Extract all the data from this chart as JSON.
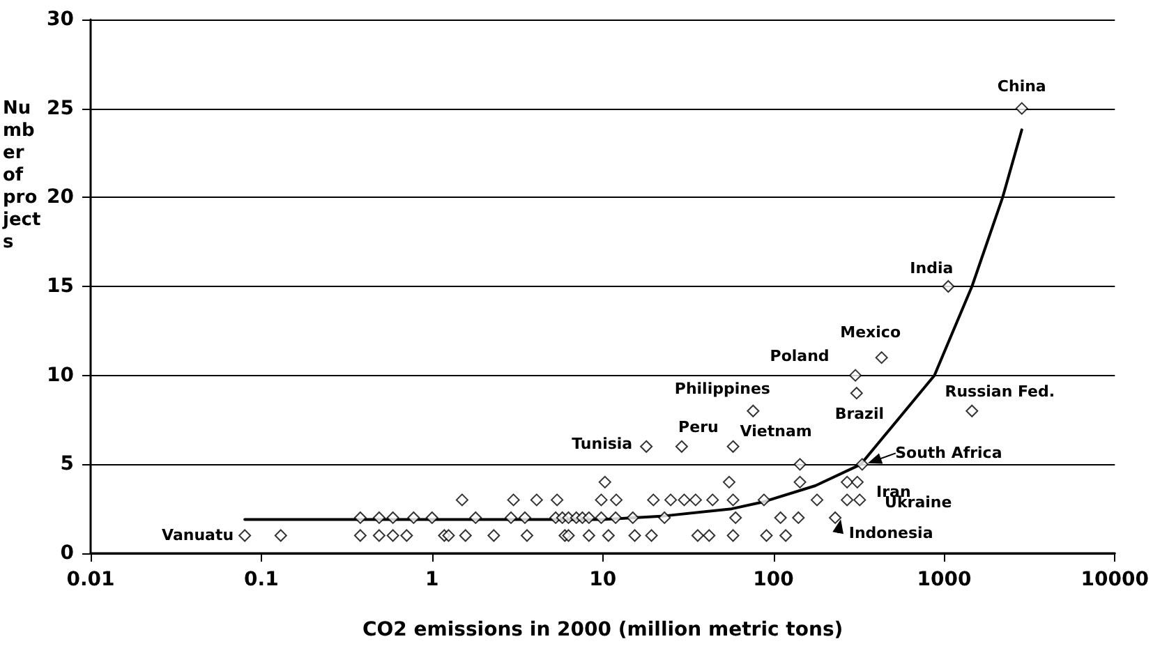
{
  "chart_data": {
    "type": "scatter",
    "xlabel": "CO2 emissions in 2000 (million metric tons)",
    "ylabel": "Number of projects",
    "log": "x",
    "xlim": [
      0.01,
      10000
    ],
    "xticks": [
      0.01,
      0.1,
      1,
      10,
      100,
      1000,
      10000
    ],
    "ylim": [
      0,
      30
    ],
    "yticks": [
      0,
      5,
      10,
      15,
      20,
      25,
      30
    ],
    "grid": "y",
    "marker": "diamond",
    "series": [
      {
        "type": "scatter",
        "color": "#000000",
        "x": [
          0.08,
          0.13,
          0.38,
          0.49,
          0.59,
          0.71,
          1.18,
          1.25,
          1.57,
          2.3,
          3.6,
          6.0,
          6.3,
          8.3,
          10.8,
          15.4,
          19.3,
          36,
          42,
          58,
          91,
          118,
          0.38,
          0.49,
          0.59,
          0.78,
          1.0,
          1.8,
          2.9,
          3.5,
          5.3,
          5.8,
          6.3,
          7,
          7.6,
          8.3,
          9.8,
          11.9,
          15,
          23,
          60,
          110,
          140,
          230,
          1.5,
          3.0,
          4.1,
          5.4,
          9.8,
          12,
          19.8,
          25,
          30,
          35,
          44,
          58,
          88,
          180,
          270,
          320,
          10.3,
          55,
          143,
          270,
          310,
          143,
          331,
          18,
          29,
          58,
          76,
          1455,
          307,
          302,
          430,
          1057,
          2850
        ],
        "values": [
          1,
          1,
          1,
          1,
          1,
          1,
          1,
          1,
          1,
          1,
          1,
          1,
          1,
          1,
          1,
          1,
          1,
          1,
          1,
          1,
          1,
          1,
          2,
          2,
          2,
          2,
          2,
          2,
          2,
          2,
          2,
          2,
          2,
          2,
          2,
          2,
          2,
          2,
          2,
          2,
          2,
          2,
          2,
          2,
          3,
          3,
          3,
          3,
          3,
          3,
          3,
          3,
          3,
          3,
          3,
          3,
          3,
          3,
          3,
          3,
          4,
          4,
          4,
          4,
          4,
          5,
          5,
          6,
          6,
          6,
          8,
          8,
          9,
          10,
          11,
          15,
          25
        ]
      },
      {
        "type": "line",
        "color": "#000000",
        "marker": "none",
        "line_style": "solid",
        "x": [
          0.08,
          1,
          10,
          23,
          57,
          88,
          176,
          325,
          877,
          1455,
          2200,
          2850
        ],
        "values": [
          1.9,
          1.9,
          1.9,
          2.1,
          2.5,
          2.9,
          3.8,
          5,
          10,
          15,
          20,
          23.8
        ]
      }
    ],
    "annotations": [
      {
        "text": "Vanuatu",
        "x": 0.08,
        "y": 1
      },
      {
        "text": "Tunisia",
        "x": 18,
        "y": 6
      },
      {
        "text": "Peru",
        "x": 29,
        "y": 6
      },
      {
        "text": "Vietnam",
        "x": 58,
        "y": 6
      },
      {
        "text": "Philippines",
        "x": 76,
        "y": 8
      },
      {
        "text": "Poland",
        "x": 302,
        "y": 10
      },
      {
        "text": "Brazil",
        "x": 307,
        "y": 9
      },
      {
        "text": "Mexico",
        "x": 430,
        "y": 11
      },
      {
        "text": "India",
        "x": 1057,
        "y": 15
      },
      {
        "text": "China",
        "x": 2850,
        "y": 25
      },
      {
        "text": "Russian Fed.",
        "x": 1455,
        "y": 8
      },
      {
        "text": "South Africa",
        "x": 331,
        "y": 5
      },
      {
        "text": "Iran",
        "x": 310,
        "y": 4
      },
      {
        "text": "Ukraine",
        "x": 320,
        "y": 3
      },
      {
        "text": "Indonesia",
        "x": 230,
        "y": 2
      }
    ]
  }
}
